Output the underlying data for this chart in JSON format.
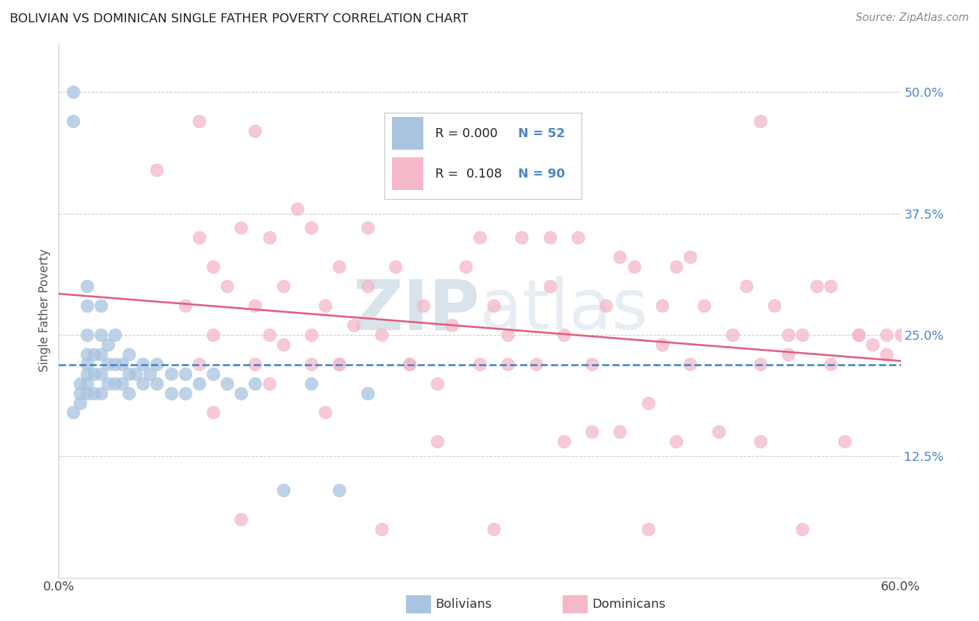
{
  "title": "BOLIVIAN VS DOMINICAN SINGLE FATHER POVERTY CORRELATION CHART",
  "source": "Source: ZipAtlas.com",
  "xlim": [
    0.0,
    0.6
  ],
  "ylim": [
    0.0,
    0.55
  ],
  "ytick_positions": [
    0.125,
    0.25,
    0.375,
    0.5
  ],
  "ytick_labels": [
    "12.5%",
    "25.0%",
    "37.5%",
    "50.0%"
  ],
  "xtick_positions": [
    0.0,
    0.6
  ],
  "xtick_labels": [
    "0.0%",
    "60.0%"
  ],
  "ylabel": "Single Father Poverty",
  "legend_R1": "0.000",
  "legend_N1": "52",
  "legend_R2": "0.108",
  "legend_N2": "90",
  "color_bolivian": "#a8c4e0",
  "color_dominican": "#f4b8c8",
  "line_color_bolivian": "#4a86c8",
  "line_color_dominican": "#e06080",
  "tick_color": "#4a86c8",
  "grid_color": "#cccccc",
  "watermark_color": "#c8d8ec",
  "bolivian_x": [
    0.01,
    0.01,
    0.015,
    0.015,
    0.015,
    0.02,
    0.02,
    0.02,
    0.02,
    0.02,
    0.02,
    0.02,
    0.02,
    0.025,
    0.025,
    0.025,
    0.03,
    0.03,
    0.03,
    0.03,
    0.03,
    0.035,
    0.035,
    0.035,
    0.04,
    0.04,
    0.04,
    0.045,
    0.045,
    0.05,
    0.05,
    0.05,
    0.055,
    0.06,
    0.06,
    0.065,
    0.07,
    0.07,
    0.08,
    0.08,
    0.09,
    0.09,
    0.1,
    0.11,
    0.12,
    0.13,
    0.14,
    0.16,
    0.18,
    0.2,
    0.22,
    0.01
  ],
  "bolivian_y": [
    0.5,
    0.47,
    0.2,
    0.19,
    0.18,
    0.3,
    0.28,
    0.25,
    0.23,
    0.22,
    0.21,
    0.2,
    0.19,
    0.23,
    0.21,
    0.19,
    0.28,
    0.25,
    0.23,
    0.21,
    0.19,
    0.24,
    0.22,
    0.2,
    0.25,
    0.22,
    0.2,
    0.22,
    0.2,
    0.23,
    0.21,
    0.19,
    0.21,
    0.22,
    0.2,
    0.21,
    0.22,
    0.2,
    0.21,
    0.19,
    0.21,
    0.19,
    0.2,
    0.21,
    0.2,
    0.19,
    0.2,
    0.09,
    0.2,
    0.09,
    0.19,
    0.17
  ],
  "dominican_x": [
    0.07,
    0.09,
    0.1,
    0.1,
    0.11,
    0.11,
    0.12,
    0.13,
    0.14,
    0.14,
    0.15,
    0.15,
    0.15,
    0.16,
    0.17,
    0.18,
    0.18,
    0.19,
    0.2,
    0.2,
    0.21,
    0.22,
    0.23,
    0.24,
    0.25,
    0.26,
    0.27,
    0.28,
    0.29,
    0.3,
    0.31,
    0.32,
    0.33,
    0.34,
    0.35,
    0.36,
    0.37,
    0.38,
    0.39,
    0.4,
    0.41,
    0.42,
    0.43,
    0.44,
    0.45,
    0.46,
    0.47,
    0.48,
    0.49,
    0.5,
    0.51,
    0.52,
    0.53,
    0.54,
    0.55,
    0.57,
    0.57,
    0.58,
    0.59,
    0.6,
    0.1,
    0.14,
    0.18,
    0.22,
    0.3,
    0.35,
    0.4,
    0.45,
    0.5,
    0.55,
    0.16,
    0.2,
    0.25,
    0.32,
    0.38,
    0.44,
    0.5,
    0.56,
    0.11,
    0.19,
    0.27,
    0.36,
    0.43,
    0.52,
    0.59,
    0.13,
    0.23,
    0.31,
    0.42,
    0.53
  ],
  "dominican_y": [
    0.42,
    0.28,
    0.35,
    0.22,
    0.32,
    0.25,
    0.3,
    0.36,
    0.28,
    0.22,
    0.35,
    0.25,
    0.2,
    0.3,
    0.38,
    0.25,
    0.22,
    0.28,
    0.32,
    0.22,
    0.26,
    0.3,
    0.25,
    0.32,
    0.22,
    0.28,
    0.2,
    0.26,
    0.32,
    0.22,
    0.28,
    0.25,
    0.35,
    0.22,
    0.3,
    0.25,
    0.35,
    0.22,
    0.28,
    0.15,
    0.32,
    0.18,
    0.28,
    0.32,
    0.22,
    0.28,
    0.15,
    0.25,
    0.3,
    0.22,
    0.28,
    0.25,
    0.25,
    0.3,
    0.22,
    0.25,
    0.25,
    0.24,
    0.25,
    0.25,
    0.47,
    0.46,
    0.36,
    0.36,
    0.35,
    0.35,
    0.33,
    0.33,
    0.47,
    0.3,
    0.24,
    0.22,
    0.22,
    0.22,
    0.15,
    0.14,
    0.14,
    0.14,
    0.17,
    0.17,
    0.14,
    0.14,
    0.24,
    0.23,
    0.23,
    0.06,
    0.05,
    0.05,
    0.05,
    0.05
  ]
}
